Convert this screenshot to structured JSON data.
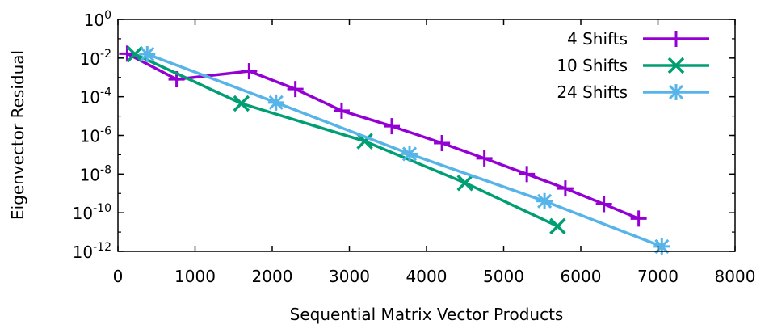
{
  "chart_data": {
    "type": "line",
    "xlabel": "Sequential Matrix Vector Products",
    "ylabel": "Eigenvector Residual",
    "xlim": [
      0,
      8000
    ],
    "ylim": [
      1e-12,
      1
    ],
    "yscale": "log",
    "x_ticks": [
      0,
      1000,
      2000,
      3000,
      4000,
      5000,
      6000,
      7000,
      8000
    ],
    "x_tick_labels": [
      "0",
      "1000",
      "2000",
      "3000",
      "4000",
      "5000",
      "6000",
      "7000",
      "8000"
    ],
    "y_tick_labels": [
      {
        "value": 1,
        "base": "10",
        "exp": "0"
      },
      {
        "value": 0.01,
        "base": "10",
        "exp": "-2"
      },
      {
        "value": 0.0001,
        "base": "10",
        "exp": "-4"
      },
      {
        "value": 1e-06,
        "base": "10",
        "exp": "-6"
      },
      {
        "value": 1e-08,
        "base": "10",
        "exp": "-8"
      },
      {
        "value": 1e-10,
        "base": "10",
        "exp": "-10"
      },
      {
        "value": 1e-12,
        "base": "10",
        "exp": "-12"
      }
    ],
    "legend_position": "top-right",
    "series": [
      {
        "name": "4 Shifts",
        "color": "#9400d3",
        "marker": "plus",
        "x": [
          120,
          760,
          1700,
          2300,
          2900,
          3550,
          4200,
          4750,
          5300,
          5800,
          6300,
          6750
        ],
        "y": [
          0.017,
          0.0008,
          0.0021,
          0.00025,
          1.9e-05,
          3e-06,
          4e-07,
          6.5e-08,
          1e-08,
          1.8e-09,
          2.8e-10,
          5e-11
        ]
      },
      {
        "name": "10 Shifts",
        "color": "#009e73",
        "marker": "x",
        "x": [
          220,
          1600,
          3200,
          4500,
          5700
        ],
        "y": [
          0.016,
          4.5e-05,
          5e-07,
          3.5e-09,
          2e-11
        ]
      },
      {
        "name": "24 Shifts",
        "color": "#56b4e9",
        "marker": "star",
        "x": [
          380,
          2050,
          3780,
          5530,
          7050
        ],
        "y": [
          0.016,
          5e-05,
          1.1e-07,
          4e-10,
          1.8e-12
        ]
      }
    ]
  }
}
